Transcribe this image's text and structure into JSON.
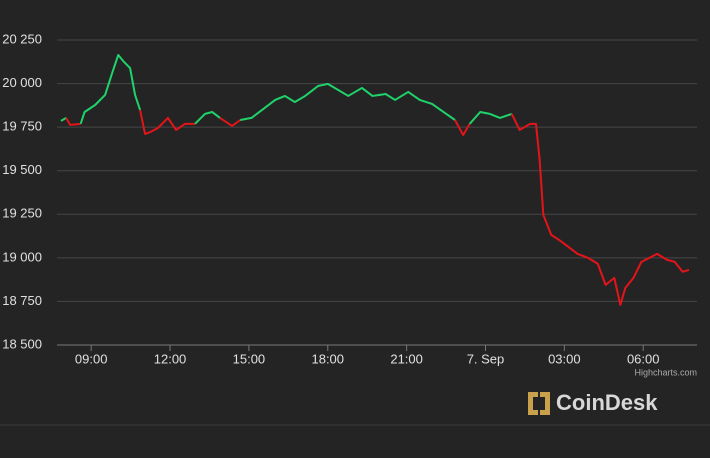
{
  "chart_data": {
    "type": "line",
    "x": [
      7.85,
      8.05,
      8.2,
      8.6,
      8.75,
      9.15,
      9.53,
      9.8,
      10.03,
      10.25,
      10.48,
      10.67,
      10.86,
      11.05,
      11.25,
      11.54,
      11.92,
      12.23,
      12.57,
      12.95,
      13.33,
      13.6,
      13.9,
      14.36,
      14.67,
      15.1,
      15.6,
      16,
      16.37,
      16.75,
      17.14,
      17.63,
      18,
      18.4,
      18.78,
      19.3,
      19.7,
      20.2,
      20.56,
      21.06,
      21.5,
      21.97,
      22.4,
      22.84,
      23.15,
      23.4,
      23.8,
      24.17,
      24.55,
      25,
      25.3,
      25.7,
      25.92,
      26.06,
      26.2,
      26.5,
      26.8,
      27.1,
      27.5,
      27.9,
      28.27,
      28.57,
      28.9,
      29.13,
      29.32,
      29.63,
      29.93,
      30.23,
      30.53,
      30.9,
      31.2,
      31.5,
      31.74
    ],
    "series": [
      {
        "values": [
          19786,
          19803,
          19763,
          19769,
          19837,
          19877,
          19935,
          20061,
          20164,
          20124,
          20089,
          19935,
          19849,
          19711,
          19722,
          19745,
          19803,
          19734,
          19769,
          19769,
          19826,
          19837,
          19803,
          19757,
          19791,
          19803,
          19860,
          19906,
          19929,
          19894,
          19929,
          19986,
          19998,
          19963,
          19929,
          19975,
          19929,
          19940,
          19906,
          19952,
          19906,
          19883,
          19837,
          19791,
          19705,
          19769,
          19837,
          19826,
          19803,
          19826,
          19734,
          19769,
          19769,
          19562,
          19247,
          19132,
          19103,
          19069,
          19023,
          19000,
          18966,
          18845,
          18885,
          18730,
          18828,
          18885,
          18977,
          19000,
          19023,
          18989,
          18977,
          18920,
          18931
        ],
        "color_above": "#1fd36b",
        "color_below": "#e3141a"
      }
    ],
    "xlim": [
      7.7,
      31.97
    ],
    "xticks": [
      {
        "value": 9,
        "label": "09:00"
      },
      {
        "value": 12,
        "label": "12:00"
      },
      {
        "value": 15,
        "label": "15:00"
      },
      {
        "value": 18,
        "label": "18:00"
      },
      {
        "value": 21,
        "label": "21:00"
      },
      {
        "value": 24,
        "label": "7. Sep"
      },
      {
        "value": 27,
        "label": "03:00"
      },
      {
        "value": 30,
        "label": "06:00"
      }
    ],
    "ylim": [
      18500,
      20250
    ],
    "yticks": [
      {
        "value": 18500,
        "label": "18 500"
      },
      {
        "value": 18750,
        "label": "18 750"
      },
      {
        "value": 19000,
        "label": "19 000"
      },
      {
        "value": 19250,
        "label": "19 250"
      },
      {
        "value": 19500,
        "label": "19 500"
      },
      {
        "value": 19750,
        "label": "19 750"
      },
      {
        "value": 20000,
        "label": "20 000"
      },
      {
        "value": 20250,
        "label": "20 250"
      }
    ],
    "grid": true,
    "credits": "Highcharts.com",
    "brand": "CoinDesk"
  }
}
